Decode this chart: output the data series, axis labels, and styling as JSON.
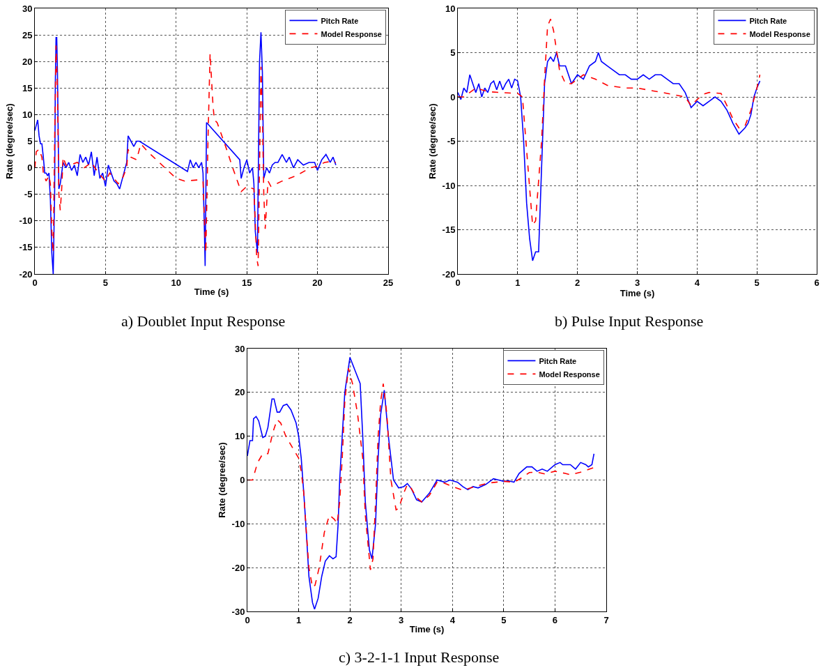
{
  "chart_data": [
    {
      "type": "line",
      "title": "a) Doublet Input Response",
      "xlabel": "Time (s)",
      "ylabel": "Rate (degree/sec)",
      "xlim": [
        0,
        25
      ],
      "xticks": [
        0,
        5,
        10,
        15,
        20,
        25
      ],
      "ylim": [
        -20,
        30
      ],
      "yticks": [
        -20,
        -15,
        -10,
        -5,
        0,
        5,
        10,
        15,
        20,
        25,
        30
      ],
      "grid": true,
      "legend": "top right",
      "series": [
        {
          "name": "Pitch Rate",
          "color": "#0000ff",
          "line_style": "solid",
          "x": [
            0,
            0.1,
            0.2,
            0.3,
            0.4,
            0.5,
            0.6,
            0.7,
            0.8,
            0.9,
            1.0,
            1.1,
            1.2,
            1.3,
            1.4,
            1.45,
            1.5,
            1.55,
            1.6,
            1.7,
            1.8,
            1.9,
            2.0,
            2.2,
            2.4,
            2.6,
            2.8,
            3.0,
            3.2,
            3.4,
            3.6,
            3.8,
            4.0,
            4.2,
            4.4,
            4.6,
            4.8,
            5.0,
            5.2,
            5.4,
            5.6,
            5.8,
            6.0,
            6.2,
            6.4,
            6.5,
            6.6,
            6.8,
            7.0,
            7.2,
            7.4,
            10.8,
            11.0,
            11.2,
            11.4,
            11.6,
            11.8,
            11.9,
            12.0,
            12.05,
            12.15,
            14.5,
            14.6,
            14.8,
            15.0,
            15.2,
            15.4,
            15.5,
            15.6,
            15.75,
            15.9,
            16.0,
            16.1,
            16.2,
            16.4,
            16.6,
            16.8,
            17.0,
            17.2,
            17.5,
            17.8,
            18.0,
            18.3,
            18.6,
            19.0,
            19.4,
            19.8,
            20.0,
            20.3,
            20.6,
            20.9,
            21.1,
            21.3
          ],
          "values": [
            7,
            8,
            9,
            6,
            4.5,
            4.5,
            2,
            -1,
            -1,
            -1.5,
            -1,
            -6,
            -16,
            -20,
            -5,
            16,
            24.5,
            24.5,
            18,
            -4,
            -3,
            -1,
            1,
            0,
            1,
            -0.5,
            0.5,
            -1.5,
            2.5,
            1,
            2,
            0.5,
            3,
            -1.5,
            2,
            -2,
            -1,
            -3.5,
            0.5,
            -1,
            -2.5,
            -3,
            -4,
            -2,
            0,
            1,
            6,
            5,
            4,
            5,
            5,
            -0.7,
            1.5,
            0,
            1,
            0,
            1,
            -1,
            -12,
            -18.5,
            8.5,
            1.5,
            -2,
            0,
            1.5,
            -1,
            0,
            -3,
            -12,
            -16,
            20,
            25.5,
            18,
            -2,
            0,
            -1,
            0.5,
            1,
            1,
            2.5,
            1,
            2,
            0,
            1.5,
            0.5,
            1,
            1,
            -0.5,
            1.5,
            2.5,
            1,
            2,
            0.5
          ]
        },
        {
          "name": "Model Response",
          "color": "#ff0000",
          "line_style": "dashed",
          "x": [
            0,
            0.1,
            0.3,
            0.5,
            0.6,
            0.8,
            1.0,
            1.1,
            1.2,
            1.3,
            1.4,
            1.5,
            1.6,
            1.7,
            1.8,
            1.9,
            2.0,
            2.2,
            2.5,
            3.0,
            3.5,
            4.0,
            4.5,
            5.0,
            5.3,
            5.6,
            5.9,
            6.2,
            6.5,
            6.6,
            6.8,
            7.2,
            7.5,
            8,
            9,
            10,
            10.6,
            11.5,
            11.9,
            12.0,
            12.1,
            12.25,
            12.4,
            12.6,
            12.7,
            12.9,
            13.5,
            14.0,
            14.6,
            15.0,
            15.5,
            15.7,
            15.8,
            16.0,
            16.1,
            16.2,
            16.3,
            16.5,
            16.7,
            17.5,
            18.5,
            19.5,
            20.0,
            20.5,
            21.0,
            21.3
          ],
          "values": [
            0,
            3,
            3.5,
            2,
            -1,
            -2.5,
            -1.5,
            -3,
            -12,
            -16,
            5,
            23,
            15,
            -5,
            -8,
            -4,
            2,
            0.5,
            0.5,
            1,
            0,
            1,
            -1,
            -2.5,
            -1,
            -2,
            -3,
            -2,
            0,
            3.5,
            2,
            1.5,
            4.5,
            3,
            0.5,
            -2,
            -2.5,
            -2.3,
            -2.5,
            -10,
            -16,
            5,
            21.5,
            12,
            9,
            8.5,
            4,
            0,
            -4.5,
            -3.5,
            -4,
            -17,
            -18.5,
            19,
            10,
            -5,
            -11.5,
            -2.5,
            -3.5,
            -2.5,
            -1.5,
            0,
            0.3,
            1,
            1.2,
            1
          ]
        }
      ]
    },
    {
      "type": "line",
      "title": "b) Pulse Input Response",
      "xlabel": "Time (s)",
      "ylabel": "Rate (degree/sec)",
      "xlim": [
        0,
        6
      ],
      "xticks": [
        0,
        1,
        2,
        3,
        4,
        5,
        6
      ],
      "ylim": [
        -20,
        10
      ],
      "yticks": [
        -20,
        -15,
        -10,
        -5,
        0,
        5,
        10
      ],
      "grid": true,
      "legend": "top right",
      "series": [
        {
          "name": "Pitch Rate",
          "color": "#0000ff",
          "line_style": "solid",
          "x": [
            0,
            0.05,
            0.1,
            0.15,
            0.2,
            0.25,
            0.3,
            0.35,
            0.4,
            0.45,
            0.5,
            0.55,
            0.6,
            0.65,
            0.7,
            0.75,
            0.8,
            0.85,
            0.9,
            0.95,
            1.0,
            1.05,
            1.1,
            1.15,
            1.2,
            1.25,
            1.3,
            1.35,
            1.4,
            1.45,
            1.5,
            1.55,
            1.6,
            1.65,
            1.7,
            1.8,
            1.9,
            2.0,
            2.1,
            2.2,
            2.3,
            2.35,
            2.4,
            2.5,
            2.6,
            2.7,
            2.8,
            2.9,
            3.0,
            3.1,
            3.2,
            3.3,
            3.4,
            3.5,
            3.6,
            3.7,
            3.8,
            3.9,
            4.0,
            4.1,
            4.2,
            4.3,
            4.4,
            4.5,
            4.6,
            4.7,
            4.8,
            4.85,
            4.9,
            4.95,
            5.0,
            5.05
          ],
          "values": [
            0.5,
            -0.3,
            1,
            0.5,
            2.5,
            1.5,
            0.5,
            1.5,
            0,
            1,
            0.5,
            1.5,
            1.8,
            0.8,
            1.8,
            0.8,
            1.5,
            2,
            1,
            2,
            1.8,
            0,
            -5,
            -12,
            -16,
            -18.5,
            -17.5,
            -17.5,
            -8,
            1.5,
            4,
            4.5,
            4,
            5,
            3.5,
            3.5,
            1.5,
            2.5,
            2,
            3.5,
            4,
            5,
            4,
            3.5,
            3,
            2.5,
            2.5,
            2,
            2,
            2.5,
            2,
            2.5,
            2.5,
            2,
            1.5,
            1.5,
            0.5,
            -1.2,
            -0.5,
            -1,
            -0.5,
            0,
            -0.5,
            -1.5,
            -3,
            -4.2,
            -3.5,
            -3,
            -2,
            0,
            1,
            1.8
          ]
        },
        {
          "name": "Model Response",
          "color": "#ff0000",
          "line_style": "dashed",
          "x": [
            0,
            0.1,
            0.2,
            0.3,
            0.5,
            0.7,
            1.0,
            1.08,
            1.15,
            1.25,
            1.3,
            1.4,
            1.45,
            1.5,
            1.55,
            1.6,
            1.7,
            1.8,
            1.9,
            2.0,
            2.1,
            2.3,
            2.5,
            2.8,
            3.0,
            3.5,
            3.8,
            3.9,
            4.0,
            4.1,
            4.2,
            4.4,
            4.5,
            4.6,
            4.7,
            4.8,
            4.9,
            5.0,
            5.05
          ],
          "values": [
            0,
            0,
            0.5,
            1,
            0.6,
            0.5,
            0.4,
            0,
            -6,
            -14.5,
            -14,
            -5,
            2,
            8,
            8.8,
            7.5,
            3,
            1.5,
            1.5,
            2,
            2.5,
            2,
            1.3,
            1,
            1,
            0.4,
            0,
            -1,
            -0.3,
            0.3,
            0.5,
            0.4,
            -1,
            -2.5,
            -3.5,
            -3.3,
            -1.5,
            1,
            2.5
          ]
        }
      ]
    },
    {
      "type": "line",
      "title": "c) 3-2-1-1 Input Response",
      "xlabel": "Time (s)",
      "ylabel": "Rate (degree/sec)",
      "xlim": [
        0,
        7
      ],
      "xticks": [
        0,
        1,
        2,
        3,
        4,
        5,
        6,
        7
      ],
      "ylim": [
        -30,
        30
      ],
      "yticks": [
        -30,
        -20,
        -10,
        0,
        10,
        20,
        30
      ],
      "grid": true,
      "legend": "top right",
      "series": [
        {
          "name": "Pitch Rate",
          "color": "#0000ff",
          "line_style": "solid",
          "x": [
            0,
            0.05,
            0.1,
            0.12,
            0.17,
            0.22,
            0.3,
            0.35,
            0.4,
            0.48,
            0.52,
            0.58,
            0.63,
            0.7,
            0.77,
            0.85,
            0.95,
            1.0,
            1.05,
            1.1,
            1.15,
            1.2,
            1.27,
            1.31,
            1.38,
            1.45,
            1.52,
            1.6,
            1.67,
            1.73,
            1.77,
            1.8,
            1.85,
            1.9,
            2.0,
            2.1,
            2.2,
            2.25,
            2.3,
            2.38,
            2.43,
            2.5,
            2.55,
            2.6,
            2.67,
            2.75,
            2.85,
            2.95,
            3.05,
            3.12,
            3.2,
            3.3,
            3.4,
            3.55,
            3.7,
            3.85,
            3.95,
            4.1,
            4.2,
            4.3,
            4.4,
            4.5,
            4.65,
            4.8,
            4.9,
            5.0,
            5.1,
            5.2,
            5.3,
            5.45,
            5.55,
            5.65,
            5.75,
            5.85,
            6.0,
            6.1,
            6.15,
            6.3,
            6.4,
            6.5,
            6.6,
            6.65,
            6.72,
            6.76
          ],
          "values": [
            5.5,
            9,
            9,
            14,
            14.5,
            13.5,
            9.7,
            10,
            12,
            18.5,
            18.5,
            15.5,
            15.5,
            17,
            17.3,
            16,
            13,
            10,
            5,
            -3,
            -12,
            -22,
            -28,
            -29.5,
            -27,
            -22,
            -18.5,
            -17.3,
            -18,
            -17.5,
            -10,
            0,
            10,
            20,
            28,
            25,
            22,
            10,
            -5,
            -16,
            -18,
            -10,
            5,
            15,
            20.5,
            10,
            0,
            -1.8,
            -1.5,
            -0.8,
            -2,
            -4.5,
            -5,
            -3,
            0,
            -0.5,
            0,
            -0.5,
            -1.5,
            -2.2,
            -1.5,
            -1.8,
            -1,
            0.3,
            0,
            -0.3,
            -0.2,
            -0.5,
            1.5,
            3,
            3,
            2,
            2.5,
            2,
            3.5,
            4,
            3.5,
            3.5,
            2.5,
            4,
            3.5,
            3,
            3.5,
            6
          ]
        },
        {
          "name": "Model Response",
          "color": "#ff0000",
          "line_style": "dashed",
          "x": [
            0,
            0.1,
            0.2,
            0.3,
            0.4,
            0.5,
            0.58,
            0.65,
            0.75,
            0.9,
            1.0,
            1.05,
            1.1,
            1.15,
            1.2,
            1.27,
            1.32,
            1.4,
            1.5,
            1.6,
            1.7,
            1.75,
            1.8,
            1.85,
            1.9,
            1.97,
            2.05,
            2.15,
            2.25,
            2.3,
            2.4,
            2.45,
            2.5,
            2.55,
            2.6,
            2.65,
            2.72,
            2.8,
            2.9,
            2.95,
            3.05,
            3.12,
            3.2,
            3.3,
            3.4,
            3.55,
            3.7,
            3.8,
            4.0,
            4.2,
            4.3,
            4.5,
            4.7,
            5.0,
            5.2,
            5.35,
            5.5,
            5.65,
            5.8,
            6.0,
            6.2,
            6.3,
            6.5,
            6.75
          ],
          "values": [
            0,
            0,
            4,
            6,
            6,
            11,
            13.8,
            13,
            10,
            7,
            5,
            2,
            -3,
            -12,
            -20,
            -24.5,
            -24,
            -20,
            -12,
            -8,
            -9,
            -10,
            -5,
            5,
            18,
            25.5,
            22,
            15,
            5,
            -8,
            -20.5,
            -18,
            -5,
            10,
            18,
            22,
            15,
            0,
            -6.8,
            -6.5,
            -3,
            -1,
            -2,
            -4,
            -5,
            -3.5,
            -0.5,
            -0.5,
            -1.5,
            -2.3,
            -2,
            -1.3,
            -0.7,
            -0.3,
            -0.5,
            0.5,
            1.7,
            1.8,
            1.4,
            2,
            1.5,
            1.2,
            1.8,
            2.8
          ]
        }
      ]
    }
  ]
}
